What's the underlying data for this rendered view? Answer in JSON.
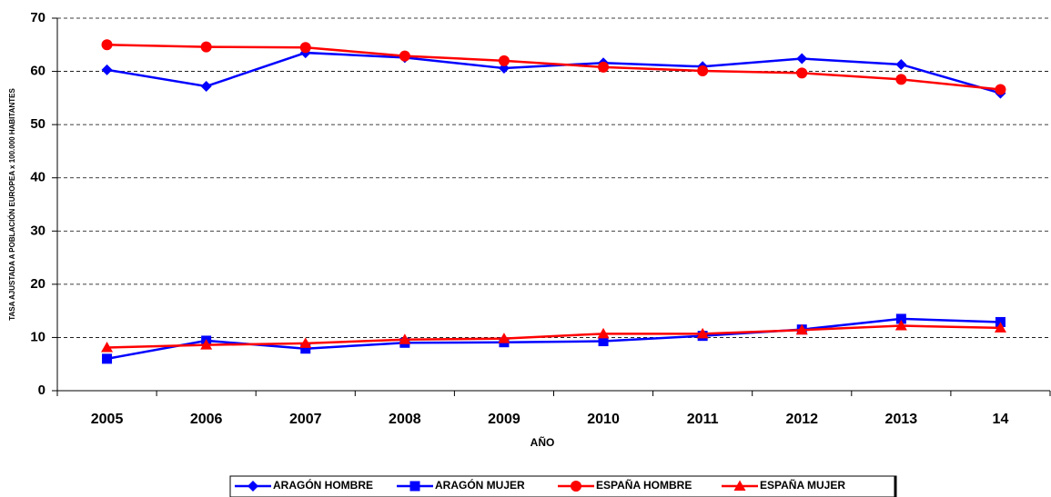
{
  "chart_data": {
    "type": "line",
    "x_label": "AÑO",
    "y_label": "TASA AJUSTADA A POBLACIÓN EUROPEA x 100.000 HABITANTES",
    "categories": [
      "2005",
      "2006",
      "2007",
      "2008",
      "2009",
      "2010",
      "2011",
      "2012",
      "2013",
      "14"
    ],
    "series": [
      {
        "name": "ARAGÓN HOMBRE",
        "color": "#0000ff",
        "marker": "diamond",
        "values": [
          60.3,
          57.2,
          63.5,
          62.6,
          60.6,
          61.6,
          60.9,
          62.4,
          61.3,
          55.9
        ]
      },
      {
        "name": "ARAGÓN MUJER",
        "color": "#0000ff",
        "marker": "square",
        "values": [
          6.0,
          9.4,
          7.9,
          9.0,
          9.1,
          9.3,
          10.3,
          11.5,
          13.5,
          12.9
        ]
      },
      {
        "name": "ESPAÑA HOMBRE",
        "color": "#ff0000",
        "marker": "circle",
        "values": [
          65.0,
          64.6,
          64.5,
          62.9,
          62.0,
          60.8,
          60.1,
          59.7,
          58.5,
          56.6
        ]
      },
      {
        "name": "ESPAÑA MUJER",
        "color": "#ff0000",
        "marker": "triangle",
        "values": [
          8.1,
          8.6,
          8.9,
          9.6,
          9.8,
          10.7,
          10.7,
          11.4,
          12.2,
          11.8
        ]
      }
    ],
    "ylim": [
      0,
      70
    ],
    "yticks": [
      0,
      10,
      20,
      30,
      40,
      50,
      60,
      70
    ],
    "grid": true,
    "legend": "bottom"
  }
}
